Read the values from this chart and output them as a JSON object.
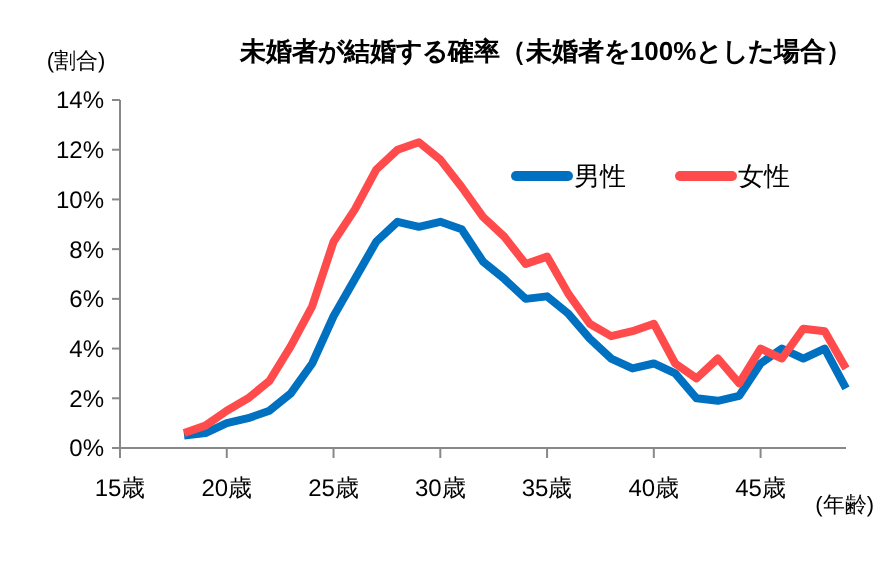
{
  "chart_data": {
    "type": "line",
    "title": "未婚者が結婚する確率（未婚者を100%とした場合）",
    "ylabel": "(割合)",
    "xlabel": "(年齢)",
    "x": [
      18,
      19,
      20,
      21,
      22,
      23,
      24,
      25,
      26,
      27,
      28,
      29,
      30,
      31,
      32,
      33,
      34,
      35,
      36,
      37,
      38,
      39,
      40,
      41,
      42,
      43,
      44,
      45,
      46,
      47,
      48,
      49
    ],
    "series": [
      {
        "name": "男性",
        "color": "#0070c0",
        "values": [
          0.5,
          0.6,
          1.0,
          1.2,
          1.5,
          2.2,
          3.4,
          5.3,
          6.8,
          8.3,
          9.1,
          8.9,
          9.1,
          8.8,
          7.5,
          6.8,
          6.0,
          6.1,
          5.4,
          4.4,
          3.6,
          3.2,
          3.4,
          3.0,
          2.0,
          1.9,
          2.1,
          3.4,
          4.0,
          3.6,
          4.0,
          2.4
        ]
      },
      {
        "name": "女性",
        "color": "#ff4b4b",
        "values": [
          0.6,
          0.9,
          1.5,
          2.0,
          2.7,
          4.1,
          5.7,
          8.3,
          9.6,
          11.2,
          12.0,
          12.3,
          11.6,
          10.5,
          9.3,
          8.5,
          7.4,
          7.7,
          6.2,
          5.0,
          4.5,
          4.7,
          5.0,
          3.4,
          2.8,
          3.6,
          2.6,
          4.0,
          3.6,
          4.8,
          4.7,
          3.2
        ]
      }
    ],
    "xlim": [
      15,
      49
    ],
    "xticks": [
      {
        "value": 15,
        "label": "15歳"
      },
      {
        "value": 20,
        "label": "20歳"
      },
      {
        "value": 25,
        "label": "25歳"
      },
      {
        "value": 30,
        "label": "30歳"
      },
      {
        "value": 35,
        "label": "35歳"
      },
      {
        "value": 40,
        "label": "40歳"
      },
      {
        "value": 45,
        "label": "45歳"
      }
    ],
    "ylim": [
      0,
      14
    ],
    "yticks": [
      {
        "value": 0,
        "label": "0%"
      },
      {
        "value": 2,
        "label": "2%"
      },
      {
        "value": 4,
        "label": "4%"
      },
      {
        "value": 6,
        "label": "6%"
      },
      {
        "value": 8,
        "label": "8%"
      },
      {
        "value": 10,
        "label": "10%"
      },
      {
        "value": 12,
        "label": "12%"
      },
      {
        "value": 14,
        "label": "14%"
      }
    ],
    "legend": "top right",
    "grid": false,
    "marker": "none",
    "line_style": "solid"
  }
}
